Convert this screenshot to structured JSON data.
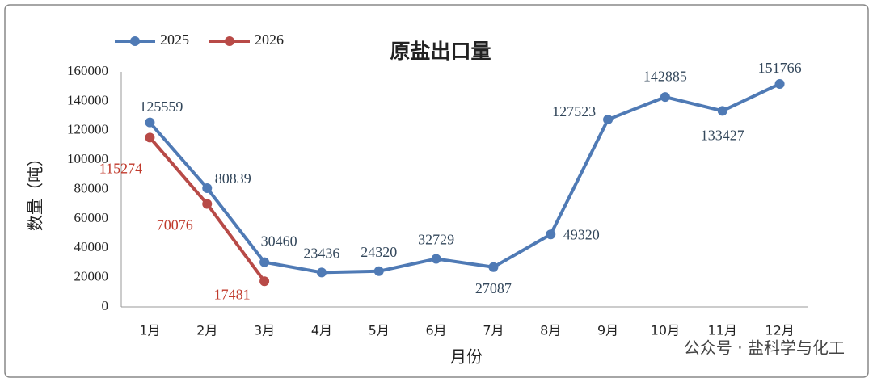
{
  "chart_data": {
    "type": "line",
    "title": "原盐出口量",
    "categories": [
      "1月",
      "2月",
      "3月",
      "4月",
      "5月",
      "6月",
      "7月",
      "8月",
      "9月",
      "10月",
      "11月",
      "12月"
    ],
    "series": [
      {
        "name": "2025",
        "color": "#4f7ab5",
        "label_color": "#33475b",
        "values": [
          125559,
          80839,
          30460,
          23436,
          24320,
          32729,
          27087,
          49320,
          127523,
          142885,
          133427,
          151766
        ]
      },
      {
        "name": "2026",
        "color": "#b84a47",
        "label_color": "#c0392b",
        "values": [
          115274,
          70076,
          17481,
          null,
          null,
          null,
          null,
          null,
          null,
          null,
          null,
          null
        ]
      }
    ],
    "x_label": "月份",
    "y_label": "数量（吨）",
    "ylim": [
      0,
      160000
    ],
    "yticks": [
      0,
      20000,
      40000,
      60000,
      80000,
      100000,
      120000,
      140000,
      160000
    ],
    "grid": false,
    "legend": "top-left"
  },
  "watermark": "公众号 · 盐科学与化工"
}
